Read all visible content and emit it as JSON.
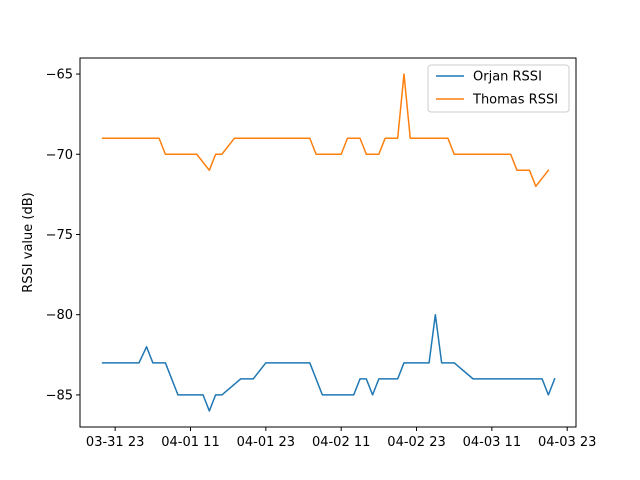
{
  "chart_data": {
    "type": "line",
    "title": "",
    "xlabel": "",
    "ylabel": "RSSI value (dB)",
    "x_tick_labels": [
      "03-31 23",
      "04-01 11",
      "04-01 23",
      "04-02 11",
      "04-02 23",
      "04-03 11",
      "04-03 23"
    ],
    "x_tick_positions": [
      0,
      12,
      24,
      36,
      48,
      60,
      72
    ],
    "x_unit": "hours from 03-31 23:00",
    "xlim": [
      -5.6,
      73.4
    ],
    "ylim": [
      -87.0,
      -64.0
    ],
    "y_ticks": [
      -65,
      -70,
      -75,
      -80,
      -85
    ],
    "y_tick_labels": [
      "−65",
      "−70",
      "−75",
      "−80",
      "−85"
    ],
    "grid": false,
    "legend_position": "top-right",
    "series": [
      {
        "name": "Orjan RSSI",
        "color": "#1f77b4",
        "points": [
          [
            -2,
            -83
          ],
          [
            3.8,
            -83
          ],
          [
            5,
            -82
          ],
          [
            6,
            -83
          ],
          [
            8,
            -83
          ],
          [
            10,
            -85
          ],
          [
            14,
            -85
          ],
          [
            15,
            -86
          ],
          [
            16,
            -85
          ],
          [
            17,
            -85
          ],
          [
            20,
            -84
          ],
          [
            22,
            -84
          ],
          [
            24,
            -83
          ],
          [
            31,
            -83
          ],
          [
            33,
            -85
          ],
          [
            38,
            -85
          ],
          [
            39,
            -84
          ],
          [
            40,
            -84
          ],
          [
            41,
            -85
          ],
          [
            42,
            -84
          ],
          [
            45,
            -84
          ],
          [
            46,
            -83
          ],
          [
            50,
            -83
          ],
          [
            51,
            -80
          ],
          [
            52,
            -83
          ],
          [
            54,
            -83
          ],
          [
            57,
            -84
          ],
          [
            68,
            -84
          ],
          [
            69,
            -85
          ],
          [
            70,
            -84
          ]
        ]
      },
      {
        "name": "Thomas RSSI",
        "color": "#ff7f0e",
        "points": [
          [
            -2,
            -69
          ],
          [
            7,
            -69
          ],
          [
            8,
            -70
          ],
          [
            13,
            -70
          ],
          [
            15,
            -71
          ],
          [
            16,
            -70
          ],
          [
            17,
            -70
          ],
          [
            19,
            -69
          ],
          [
            31,
            -69
          ],
          [
            32,
            -70
          ],
          [
            36,
            -70
          ],
          [
            37,
            -69
          ],
          [
            39,
            -69
          ],
          [
            40,
            -70
          ],
          [
            42,
            -70
          ],
          [
            43,
            -69
          ],
          [
            45,
            -69
          ],
          [
            46,
            -65
          ],
          [
            47,
            -69
          ],
          [
            53,
            -69
          ],
          [
            54,
            -70
          ],
          [
            63,
            -70
          ],
          [
            64,
            -71
          ],
          [
            66,
            -71
          ],
          [
            67,
            -72
          ],
          [
            69,
            -71
          ]
        ]
      }
    ]
  }
}
